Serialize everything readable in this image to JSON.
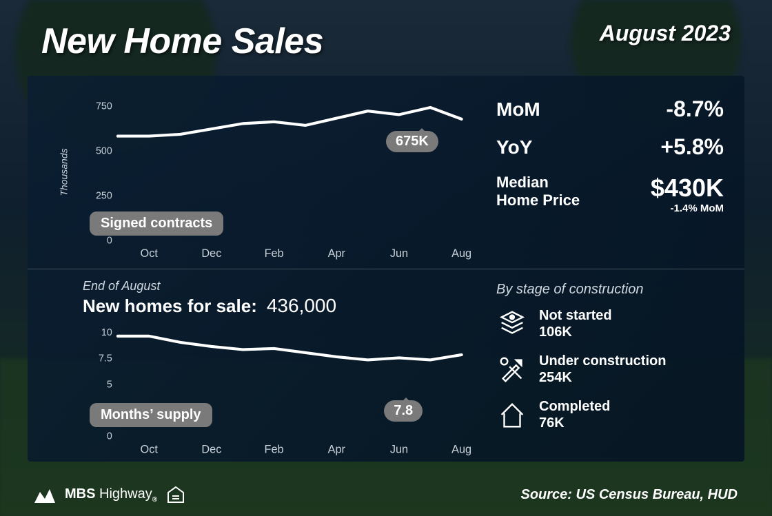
{
  "header": {
    "title": "New Home Sales",
    "date": "August 2023"
  },
  "chart1": {
    "type": "line",
    "y_axis_label": "Thousands",
    "y_ticks": [
      0,
      250,
      500,
      750
    ],
    "ylim": [
      0,
      800
    ],
    "x_labels": [
      "Oct",
      "Dec",
      "Feb",
      "Apr",
      "Jun",
      "Aug"
    ],
    "x_months": [
      "Sep",
      "Oct",
      "Nov",
      "Dec",
      "Jan",
      "Feb",
      "Mar",
      "Apr",
      "May",
      "Jun",
      "Jul",
      "Aug"
    ],
    "values": [
      580,
      580,
      590,
      620,
      650,
      660,
      640,
      680,
      720,
      700,
      740,
      675
    ],
    "callout": "675K",
    "legend_pill": "Signed contracts",
    "line_color": "#ffffff",
    "line_width": 4,
    "tick_color": "#c8d0d8",
    "tick_fontsize": 14,
    "xtick_fontsize": 16
  },
  "stats": {
    "mom_label": "MoM",
    "mom_value": "-8.7%",
    "yoy_label": "YoY",
    "yoy_value": "+5.8%",
    "median_label_1": "Median",
    "median_label_2": "Home Price",
    "median_value": "$430K",
    "median_sub": "-1.4% MoM"
  },
  "chart2": {
    "type": "line",
    "sub_small": "End of August",
    "sub_title": "New homes for sale:",
    "sub_value": "436,000",
    "y_ticks": [
      0,
      2.5,
      5,
      7.5,
      10
    ],
    "ylim": [
      0,
      10.5
    ],
    "x_labels": [
      "Oct",
      "Dec",
      "Feb",
      "Apr",
      "Jun",
      "Aug"
    ],
    "x_months": [
      "Sep",
      "Oct",
      "Nov",
      "Dec",
      "Jan",
      "Feb",
      "Mar",
      "Apr",
      "May",
      "Jun",
      "Jul",
      "Aug"
    ],
    "values": [
      9.6,
      9.6,
      9.0,
      8.6,
      8.3,
      8.4,
      8.0,
      7.6,
      7.3,
      7.5,
      7.3,
      7.8
    ],
    "callout": "7.8",
    "legend_pill": "Months’ supply",
    "line_color": "#ffffff",
    "line_width": 4,
    "tick_color": "#c8d0d8",
    "tick_fontsize": 16,
    "xtick_fontsize": 18
  },
  "stages": {
    "title": "By stage of construction",
    "items": [
      {
        "name": "Not started",
        "value": "106K",
        "icon": "layers"
      },
      {
        "name": "Under construction",
        "value": "254K",
        "icon": "tools"
      },
      {
        "name": "Completed",
        "value": "76K",
        "icon": "house"
      }
    ]
  },
  "footer": {
    "brand_1": "MBS",
    "brand_2": "Highway",
    "source": "Source: US Census Bureau, HUD"
  },
  "panel_bg": "rgba(8,25,42,0.9)",
  "pill_bg": "#7a7a7a"
}
